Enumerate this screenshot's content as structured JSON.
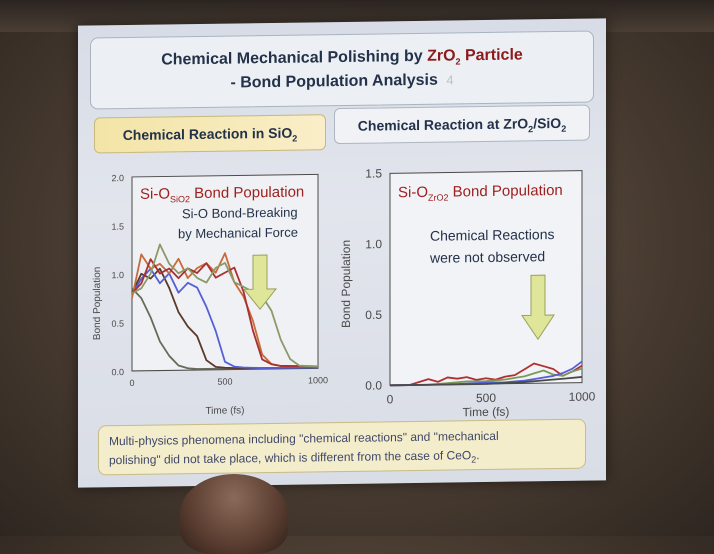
{
  "slide": {
    "title_line1_pre": "Chemical Mechanical Polishing by ",
    "title_line1_zr": "ZrO",
    "title_line1_sub": "2",
    "title_line1_post": " Particle",
    "title_line2": "- Bond Population Analysis",
    "slide_number": "4",
    "left_header_pre": "Chemical Reaction in SiO",
    "left_header_sub": "2",
    "right_header_pre": "Chemical Reaction at ZrO",
    "right_header_sub1": "2",
    "right_header_mid": "/SiO",
    "right_header_sub2": "2",
    "footer_line1": "Multi-physics phenomena including \"chemical reactions\" and \"mechanical",
    "footer_line2_pre": "polishing\" did not take place, which is different from the case of CeO",
    "footer_line2_sub": "2",
    "footer_line2_post": "."
  },
  "colors": {
    "red_text": "#9e2020",
    "navy_text": "#23324a",
    "arrow_fill": "#dfe69a"
  },
  "chart_data": [
    {
      "type": "line",
      "title": "Si-O",
      "title_subscript": "SiO2",
      "title_post": " Bond Population",
      "annotation_line1": "Si-O Bond-Breaking",
      "annotation_line2": "by Mechanical Force",
      "xlabel": "Time (fs)",
      "ylabel": "Bond Population",
      "xlim": [
        0,
        1000
      ],
      "ylim": [
        0,
        2.0
      ],
      "xticks": [
        "0",
        "500",
        "1000"
      ],
      "yticks": [
        "0.0",
        "0.5",
        "1.0",
        "1.5",
        "2.0"
      ],
      "series": [
        {
          "color": "#6a6a5a",
          "x": [
            0,
            50,
            100,
            150,
            200,
            250,
            300,
            350,
            400,
            450,
            500,
            600,
            700,
            800,
            1000
          ],
          "y": [
            0.85,
            0.75,
            0.55,
            0.3,
            0.15,
            0.05,
            0.02,
            0.01,
            0.01,
            0.01,
            0.01,
            0.01,
            0.01,
            0.01,
            0.01
          ]
        },
        {
          "color": "#5a3a2a",
          "x": [
            0,
            50,
            100,
            150,
            200,
            250,
            300,
            350,
            400,
            450,
            500,
            600,
            700,
            800,
            1000
          ],
          "y": [
            0.8,
            1.0,
            0.95,
            1.05,
            0.85,
            0.6,
            0.45,
            0.35,
            0.1,
            0.03,
            0.02,
            0.01,
            0.01,
            0.01,
            0.01
          ]
        },
        {
          "color": "#5560d8",
          "x": [
            0,
            50,
            100,
            150,
            200,
            250,
            300,
            350,
            400,
            450,
            500,
            550,
            600,
            700,
            800,
            1000
          ],
          "y": [
            0.78,
            0.95,
            1.05,
            0.9,
            1.0,
            0.8,
            0.9,
            0.85,
            0.65,
            0.4,
            0.08,
            0.03,
            0.02,
            0.01,
            0.01,
            0.01
          ]
        },
        {
          "color": "#c86a3a",
          "x": [
            0,
            50,
            100,
            150,
            200,
            250,
            300,
            350,
            400,
            450,
            500,
            550,
            600,
            650,
            700,
            750,
            800,
            1000
          ],
          "y": [
            0.75,
            1.2,
            1.05,
            1.1,
            1.0,
            1.15,
            0.95,
            1.05,
            1.1,
            1.0,
            1.2,
            0.9,
            0.75,
            0.5,
            0.15,
            0.05,
            0.03,
            0.02
          ]
        },
        {
          "color": "#a83030",
          "x": [
            0,
            50,
            100,
            150,
            200,
            250,
            300,
            350,
            400,
            450,
            500,
            550,
            600,
            650,
            700,
            750,
            800,
            1000
          ],
          "y": [
            0.8,
            0.9,
            1.15,
            1.0,
            1.05,
            0.95,
            1.05,
            1.0,
            1.1,
            0.95,
            1.0,
            1.05,
            0.8,
            0.4,
            0.1,
            0.05,
            0.03,
            0.02
          ]
        },
        {
          "color": "#8a9a6a",
          "x": [
            0,
            50,
            100,
            150,
            200,
            250,
            300,
            350,
            400,
            450,
            500,
            550,
            600,
            650,
            700,
            750,
            800,
            850,
            900,
            1000
          ],
          "y": [
            0.8,
            0.85,
            1.0,
            1.3,
            1.1,
            1.0,
            1.05,
            0.95,
            0.9,
            1.05,
            1.1,
            0.9,
            0.85,
            0.8,
            0.75,
            0.6,
            0.3,
            0.1,
            0.03,
            0.02
          ]
        }
      ]
    },
    {
      "type": "line",
      "title": "Si-O",
      "title_subscript": "ZrO2",
      "title_post": " Bond Population",
      "annotation_line1": "Chemical Reactions",
      "annotation_line2": "were not observed",
      "xlabel": "Time (fs)",
      "ylabel": "Bond Population",
      "xlim": [
        0,
        1000
      ],
      "ylim": [
        0,
        1.5
      ],
      "xticks": [
        "0",
        "500",
        "1000"
      ],
      "yticks": [
        "0.0",
        "0.5",
        "1.0",
        "1.5"
      ],
      "series": [
        {
          "color": "#b03030",
          "x": [
            0,
            100,
            150,
            200,
            250,
            300,
            350,
            400,
            450,
            500,
            550,
            600,
            650,
            700,
            750,
            800,
            850,
            900,
            950,
            1000
          ],
          "y": [
            0.0,
            0.0,
            0.02,
            0.04,
            0.02,
            0.05,
            0.04,
            0.05,
            0.03,
            0.04,
            0.03,
            0.05,
            0.06,
            0.1,
            0.14,
            0.12,
            0.1,
            0.05,
            0.08,
            0.12
          ]
        },
        {
          "color": "#7a9a5a",
          "x": [
            0,
            200,
            300,
            400,
            500,
            600,
            650,
            700,
            750,
            800,
            850,
            900,
            950,
            1000
          ],
          "y": [
            0.0,
            0.0,
            0.01,
            0.02,
            0.02,
            0.03,
            0.04,
            0.05,
            0.07,
            0.09,
            0.06,
            0.05,
            0.08,
            0.1
          ]
        },
        {
          "color": "#5560d8",
          "x": [
            0,
            300,
            500,
            600,
            700,
            750,
            800,
            850,
            900,
            950,
            1000
          ],
          "y": [
            0.0,
            0.0,
            0.01,
            0.01,
            0.02,
            0.03,
            0.04,
            0.05,
            0.07,
            0.1,
            0.15
          ]
        },
        {
          "color": "#4a4a4a",
          "x": [
            0,
            500,
            700,
            800,
            900,
            1000
          ],
          "y": [
            0.0,
            0.0,
            0.01,
            0.02,
            0.03,
            0.04
          ]
        }
      ]
    }
  ]
}
